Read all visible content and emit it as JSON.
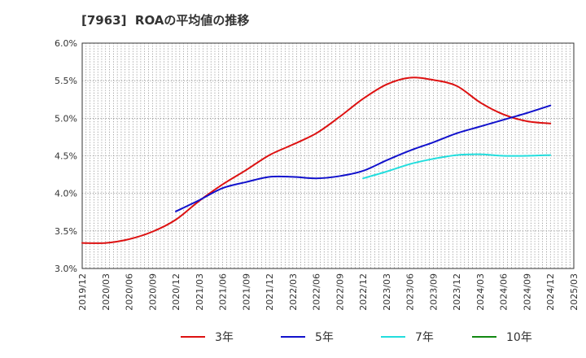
{
  "title": "[7963]  ROAの平均値の推移",
  "chart_data": {
    "type": "line",
    "title": "[7963]  ROAの平均値の推移",
    "xlabel": "",
    "ylabel": "",
    "ylim": [
      3.0,
      6.0
    ],
    "y_ticks": [
      "3.0%",
      "3.5%",
      "4.0%",
      "4.5%",
      "5.0%",
      "5.5%",
      "6.0%"
    ],
    "x_ticks": [
      "2019/12",
      "2020/03",
      "2020/06",
      "2020/09",
      "2020/12",
      "2021/03",
      "2021/06",
      "2021/09",
      "2021/12",
      "2022/03",
      "2022/06",
      "2022/09",
      "2022/12",
      "2023/03",
      "2023/06",
      "2023/09",
      "2023/12",
      "2024/03",
      "2024/06",
      "2024/09",
      "2024/12",
      "2025/03"
    ],
    "grid": true,
    "legend_position": "bottom",
    "series": [
      {
        "name": "3年",
        "color": "#dd1111",
        "x": [
          "2019/12",
          "2020/03",
          "2020/06",
          "2020/09",
          "2020/12",
          "2021/03",
          "2021/06",
          "2021/09",
          "2021/12",
          "2022/03",
          "2022/06",
          "2022/09",
          "2022/12",
          "2023/03",
          "2023/06",
          "2023/09",
          "2023/12",
          "2024/03",
          "2024/06",
          "2024/09",
          "2024/12"
        ],
        "values": [
          3.34,
          3.34,
          3.39,
          3.49,
          3.65,
          3.9,
          4.12,
          4.31,
          4.51,
          4.65,
          4.8,
          5.02,
          5.26,
          5.45,
          5.54,
          5.51,
          5.43,
          5.21,
          5.05,
          4.96,
          4.93
        ]
      },
      {
        "name": "5年",
        "color": "#1111cc",
        "x": [
          "2020/12",
          "2021/03",
          "2021/06",
          "2021/09",
          "2021/12",
          "2022/03",
          "2022/06",
          "2022/09",
          "2022/12",
          "2023/03",
          "2023/06",
          "2023/09",
          "2023/12",
          "2024/03",
          "2024/06",
          "2024/09",
          "2024/12"
        ],
        "values": [
          3.76,
          3.91,
          4.07,
          4.15,
          4.22,
          4.22,
          4.2,
          4.23,
          4.3,
          4.44,
          4.57,
          4.68,
          4.8,
          4.89,
          4.98,
          5.07,
          5.17
        ]
      },
      {
        "name": "7年",
        "color": "#22dddd",
        "x": [
          "2022/12",
          "2023/03",
          "2023/06",
          "2023/09",
          "2023/12",
          "2024/03",
          "2024/06",
          "2024/09",
          "2024/12"
        ],
        "values": [
          4.2,
          4.29,
          4.39,
          4.46,
          4.51,
          4.52,
          4.5,
          4.5,
          4.51
        ]
      },
      {
        "name": "10年",
        "color": "#118811",
        "x": [],
        "values": []
      }
    ]
  }
}
